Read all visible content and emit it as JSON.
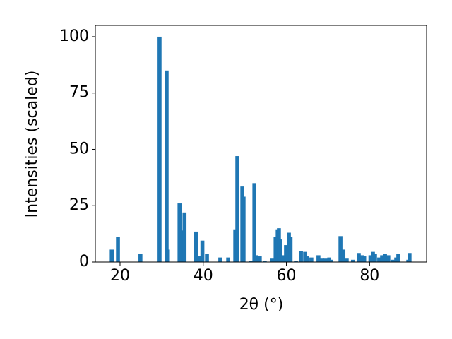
{
  "chart_data": {
    "type": "bar",
    "xlabel": "2θ (°)",
    "ylabel": "Intensities (scaled)",
    "color": "#1f77b4",
    "x": [
      18.0,
      19.5,
      24.9,
      29.5,
      31.2,
      31.5,
      34.3,
      35.1,
      35.5,
      38.3,
      39.0,
      39.8,
      40.9,
      44.1,
      46.0,
      47.7,
      48.2,
      49.4,
      49.7,
      51.4,
      52.3,
      52.8,
      53.6,
      54.8,
      56.5,
      57.4,
      57.9,
      58.2,
      58.5,
      59.1,
      59.9,
      60.6,
      61.0,
      62.3,
      63.5,
      64.5,
      65.0,
      66.0,
      67.7,
      68.6,
      69.4,
      70.3,
      70.8,
      73.0,
      73.7,
      74.5,
      76.0,
      77.4,
      78.2,
      78.7,
      80.2,
      80.8,
      81.3,
      82.3,
      83.0,
      83.7,
      84.5,
      85.5,
      86.4,
      86.9,
      89.3,
      89.6
    ],
    "values": [
      5.5,
      11,
      3.5,
      100,
      85,
      5.5,
      26,
      14,
      22,
      13.5,
      2.5,
      9.5,
      3.5,
      2,
      2,
      14.5,
      47,
      33.5,
      29,
      0.5,
      35,
      3,
      2.5,
      0.5,
      1.5,
      11,
      14.5,
      15,
      10,
      3,
      7.5,
      13,
      11,
      0.5,
      5,
      4.5,
      2.5,
      2,
      3,
      1.5,
      1.5,
      2,
      1,
      11.5,
      5.5,
      1.5,
      1,
      4,
      3,
      2.5,
      3,
      4.5,
      3.5,
      2,
      3,
      3.5,
      3,
      1,
      2,
      3.5,
      1,
      4
    ],
    "xlim": [
      14.06,
      93.7
    ],
    "ylim": [
      0,
      105
    ],
    "xticks": [
      20,
      40,
      60,
      80
    ],
    "yticks": [
      0,
      25,
      50,
      75,
      100
    ]
  }
}
